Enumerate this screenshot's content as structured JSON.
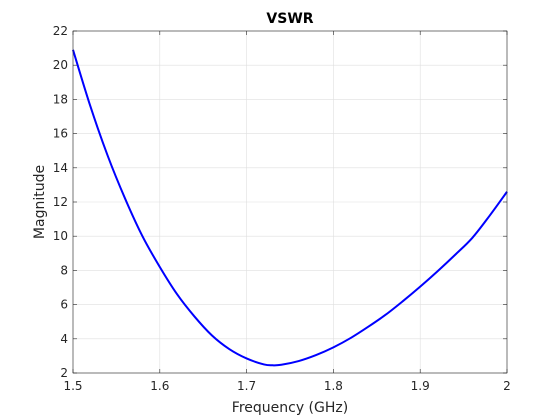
{
  "chart_data": {
    "type": "line",
    "title": "VSWR",
    "xlabel": "Frequency (GHz)",
    "ylabel": "Magnitude",
    "xlim": [
      1.5,
      2.0
    ],
    "ylim": [
      2,
      22
    ],
    "xticks": [
      1.5,
      1.6,
      1.7,
      1.8,
      1.9,
      2.0
    ],
    "xtick_labels": [
      "1.5",
      "1.6",
      "1.7",
      "1.8",
      "1.9",
      "2"
    ],
    "yticks": [
      2,
      4,
      6,
      8,
      10,
      12,
      14,
      16,
      18,
      20,
      22
    ],
    "ytick_labels": [
      "2",
      "4",
      "6",
      "8",
      "10",
      "12",
      "14",
      "16",
      "18",
      "20",
      "22"
    ],
    "grid": true,
    "line_color": "#0000ff",
    "series": [
      {
        "x": [
          1.5,
          1.52,
          1.54,
          1.56,
          1.58,
          1.6,
          1.62,
          1.64,
          1.66,
          1.68,
          1.7,
          1.72,
          1.73,
          1.74,
          1.76,
          1.78,
          1.8,
          1.82,
          1.84,
          1.86,
          1.88,
          1.9,
          1.92,
          1.94,
          1.96,
          1.98,
          2.0
        ],
        "y": [
          20.9,
          17.6,
          14.7,
          12.2,
          10.0,
          8.2,
          6.6,
          5.3,
          4.2,
          3.4,
          2.85,
          2.5,
          2.45,
          2.48,
          2.7,
          3.05,
          3.5,
          4.05,
          4.7,
          5.4,
          6.2,
          7.05,
          7.95,
          8.9,
          9.9,
          11.2,
          12.6
        ]
      }
    ]
  }
}
